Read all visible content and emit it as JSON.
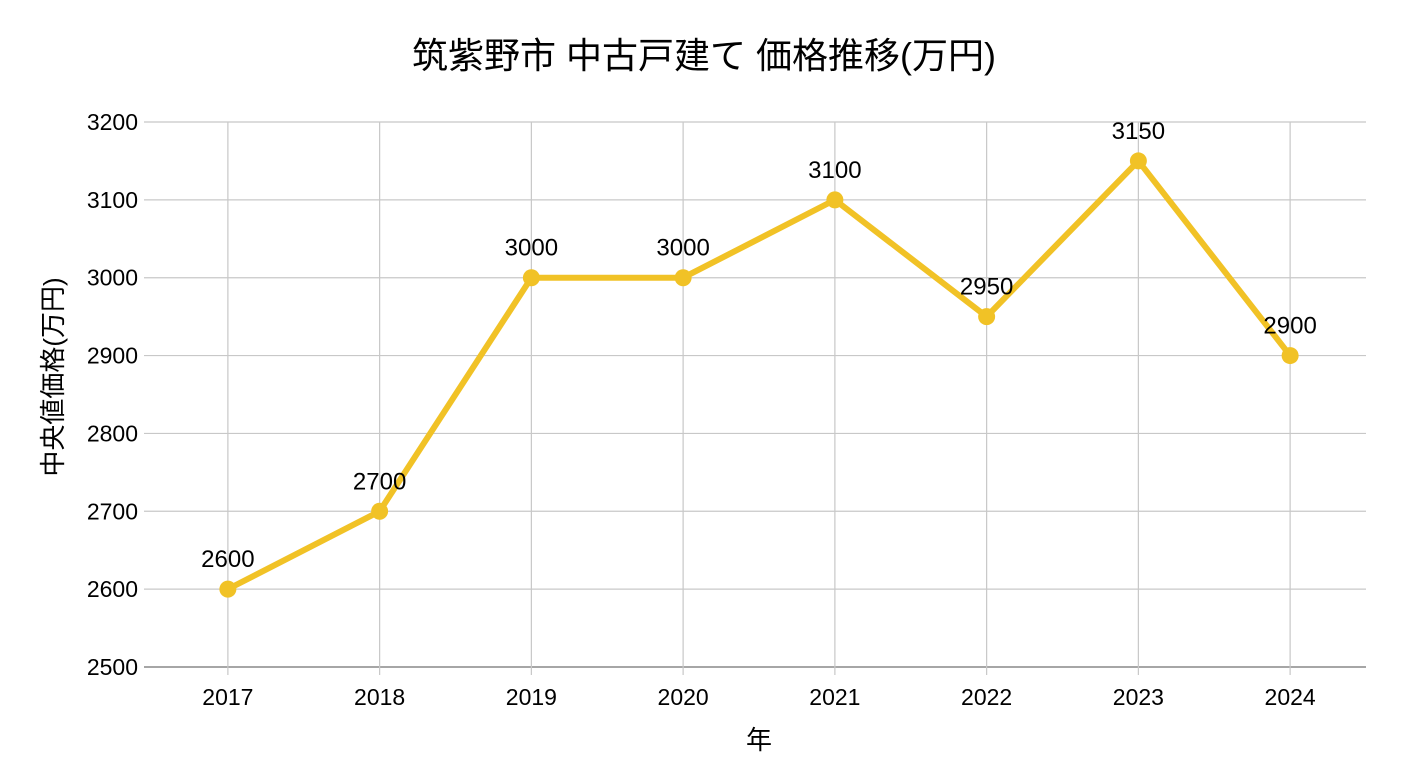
{
  "chart_data": {
    "type": "line",
    "title": "筑紫野市 中古戸建て 価格推移(万円)",
    "xlabel": "年",
    "ylabel": "中央値価格(万円)",
    "categories": [
      "2017",
      "2018",
      "2019",
      "2020",
      "2021",
      "2022",
      "2023",
      "2024"
    ],
    "series": [
      {
        "values": [
          2600,
          2700,
          3000,
          3000,
          3100,
          2950,
          3150,
          2900
        ],
        "color": "#f1c226"
      }
    ],
    "ylim": [
      2500,
      3200
    ],
    "yticks": [
      "2500",
      "2600",
      "2700",
      "2800",
      "2900",
      "3000",
      "3100",
      "3200"
    ],
    "data_labels": [
      "2600",
      "2700",
      "3000",
      "3000",
      "3100",
      "2950",
      "3150",
      "2900"
    ],
    "grid": true,
    "legend": "none"
  }
}
